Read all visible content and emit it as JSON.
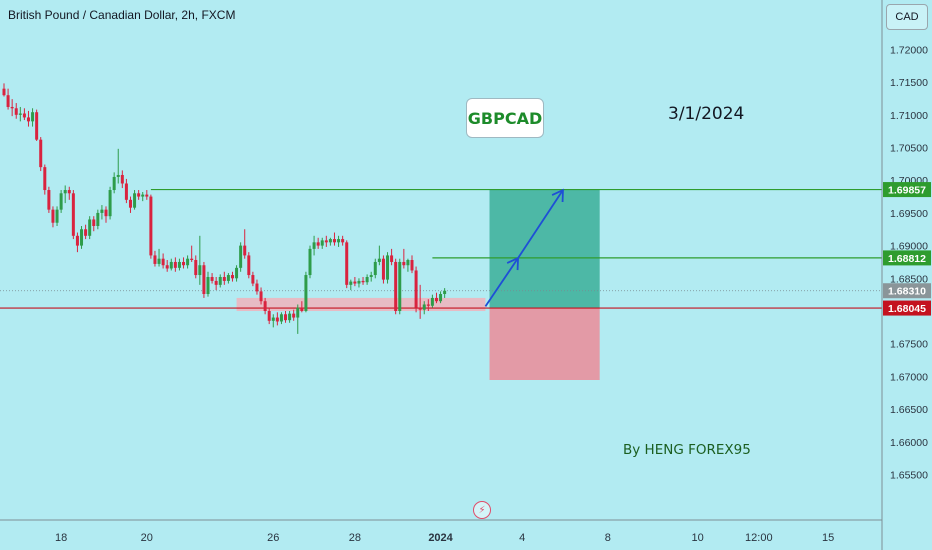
{
  "header": {
    "title": "British Pound / Canadian Dollar, 2h, FXCM"
  },
  "currency_button": "CAD",
  "annotations": {
    "pair_label": "GBPCAD",
    "date_label": "3/1/2024",
    "author_label": "By HENG FOREX95"
  },
  "colors": {
    "background": "#b2ebf2",
    "bull": "#2e9c4a",
    "bear": "#d9233f",
    "target_line": "#2e9c2e",
    "stop_line": "#c4121f",
    "profit_zone": "#4db8a6",
    "loss_zone": "#e39aa6",
    "support_zone": "#f0b3bc",
    "arrow": "#1e4fd6"
  },
  "icons": {
    "event_marker": "lightning-icon"
  },
  "chart_data": {
    "type": "candlestick",
    "symbol": "GBPCAD",
    "timeframe": "2h",
    "ylim": [
      1.6485,
      1.7245
    ],
    "y_ticks": [
      "1.72000",
      "1.71500",
      "1.71000",
      "1.70500",
      "1.70000",
      "1.69500",
      "1.69000",
      "1.68500",
      "1.68000",
      "1.67500",
      "1.67000",
      "1.66500",
      "1.66000",
      "1.65500"
    ],
    "x_ticks": [
      {
        "label": "18",
        "slot": 14
      },
      {
        "label": "20",
        "slot": 35
      },
      {
        "label": "26",
        "slot": 66
      },
      {
        "label": "28",
        "slot": 86
      },
      {
        "label": "2024",
        "slot": 107
      },
      {
        "label": "4",
        "slot": 127
      },
      {
        "label": "8",
        "slot": 148
      },
      {
        "label": "10",
        "slot": 170
      },
      {
        "label": "12:00",
        "slot": 185
      },
      {
        "label": "15",
        "slot": 202
      }
    ],
    "price_labels": [
      {
        "value": "1.69857",
        "role": "target"
      },
      {
        "value": "1.68812",
        "role": "first-target"
      },
      {
        "value": "1.68310",
        "role": "current"
      },
      {
        "value": "1.68045",
        "role": "entry"
      }
    ],
    "position": {
      "entry": 1.68045,
      "target": 1.69857,
      "first_target": 1.68812,
      "stop": 1.66945,
      "start_slot": 119,
      "end_slot": 146
    },
    "support_zone": {
      "top": 1.682,
      "bottom": 1.68,
      "start_slot": 57,
      "end_slot": 118
    },
    "arrow_path": [
      {
        "slot": 118,
        "price": 1.6807
      },
      {
        "slot": 126,
        "price": 1.6881
      },
      {
        "slot": 137,
        "price": 1.6985
      }
    ],
    "candles": [
      [
        1.714,
        1.7148,
        1.7128,
        1.713
      ],
      [
        1.713,
        1.714,
        1.7108,
        1.7112
      ],
      [
        1.7112,
        1.7124,
        1.7098,
        1.711
      ],
      [
        1.711,
        1.7118,
        1.7094,
        1.71
      ],
      [
        1.71,
        1.7112,
        1.709,
        1.7102
      ],
      [
        1.7102,
        1.711,
        1.7092,
        1.7096
      ],
      [
        1.7096,
        1.7106,
        1.7082,
        1.709
      ],
      [
        1.709,
        1.711,
        1.7082,
        1.7104
      ],
      [
        1.7104,
        1.7108,
        1.706,
        1.7062
      ],
      [
        1.7062,
        1.7066,
        1.7014,
        1.702
      ],
      [
        1.702,
        1.7024,
        1.6978,
        1.6985
      ],
      [
        1.6985,
        1.699,
        1.695,
        1.6955
      ],
      [
        1.6955,
        1.696,
        1.6928,
        1.6935
      ],
      [
        1.6935,
        1.696,
        1.693,
        1.6955
      ],
      [
        1.6955,
        1.6985,
        1.695,
        1.698
      ],
      [
        1.698,
        1.6992,
        1.6965,
        1.6985
      ],
      [
        1.6985,
        1.699,
        1.697,
        1.698
      ],
      [
        1.698,
        1.6985,
        1.691,
        1.6915
      ],
      [
        1.6915,
        1.692,
        1.689,
        1.69
      ],
      [
        1.69,
        1.693,
        1.6895,
        1.6925
      ],
      [
        1.6925,
        1.6932,
        1.691,
        1.6915
      ],
      [
        1.6915,
        1.6945,
        1.691,
        1.694
      ],
      [
        1.694,
        1.6945,
        1.6922,
        1.693
      ],
      [
        1.693,
        1.6955,
        1.6925,
        1.695
      ],
      [
        1.695,
        1.6962,
        1.694,
        1.6955
      ],
      [
        1.6955,
        1.696,
        1.6935,
        1.6945
      ],
      [
        1.6945,
        1.699,
        1.694,
        1.6985
      ],
      [
        1.6985,
        1.7012,
        1.698,
        1.7005
      ],
      [
        1.7005,
        1.7048,
        1.6995,
        1.7008
      ],
      [
        1.7008,
        1.7015,
        1.6988,
        1.6995
      ],
      [
        1.6995,
        1.7002,
        1.6965,
        1.697
      ],
      [
        1.697,
        1.6975,
        1.695,
        1.6958
      ],
      [
        1.6958,
        1.6985,
        1.6955,
        1.698
      ],
      [
        1.698,
        1.6985,
        1.697,
        1.6975
      ],
      [
        1.6975,
        1.6982,
        1.6968,
        1.6978
      ],
      [
        1.6978,
        1.6985,
        1.697,
        1.6975
      ],
      [
        1.6975,
        1.6978,
        1.688,
        1.6885
      ],
      [
        1.6885,
        1.6892,
        1.6868,
        1.6872
      ],
      [
        1.6872,
        1.6895,
        1.6868,
        1.688
      ],
      [
        1.688,
        1.6888,
        1.6865,
        1.687
      ],
      [
        1.687,
        1.6878,
        1.686,
        1.6865
      ],
      [
        1.6865,
        1.688,
        1.6862,
        1.6875
      ],
      [
        1.6875,
        1.6882,
        1.686,
        1.6866
      ],
      [
        1.6866,
        1.688,
        1.6862,
        1.6875
      ],
      [
        1.6875,
        1.6882,
        1.6865,
        1.687
      ],
      [
        1.687,
        1.6885,
        1.6865,
        1.688
      ],
      [
        1.688,
        1.69,
        1.6875,
        1.6878
      ],
      [
        1.6878,
        1.6885,
        1.685,
        1.6855
      ],
      [
        1.6855,
        1.6915,
        1.684,
        1.687
      ],
      [
        1.687,
        1.6875,
        1.682,
        1.6826
      ],
      [
        1.6826,
        1.686,
        1.6822,
        1.6852
      ],
      [
        1.6852,
        1.6858,
        1.6842,
        1.6846
      ],
      [
        1.6846,
        1.6852,
        1.6832,
        1.684
      ],
      [
        1.684,
        1.6856,
        1.6836,
        1.6852
      ],
      [
        1.6852,
        1.686,
        1.684,
        1.6846
      ],
      [
        1.6846,
        1.6858,
        1.6842,
        1.6855
      ],
      [
        1.6855,
        1.686,
        1.6845,
        1.685
      ],
      [
        1.685,
        1.687,
        1.6845,
        1.6866
      ],
      [
        1.6866,
        1.6905,
        1.686,
        1.69
      ],
      [
        1.69,
        1.6925,
        1.688,
        1.6885
      ],
      [
        1.6885,
        1.689,
        1.685,
        1.6855
      ],
      [
        1.6855,
        1.686,
        1.6838,
        1.6842
      ],
      [
        1.6842,
        1.6848,
        1.6825,
        1.683
      ],
      [
        1.683,
        1.6836,
        1.681,
        1.6815
      ],
      [
        1.6815,
        1.682,
        1.6795,
        1.68
      ],
      [
        1.68,
        1.6805,
        1.678,
        1.6785
      ],
      [
        1.6785,
        1.6795,
        1.6775,
        1.679
      ],
      [
        1.679,
        1.6798,
        1.6778,
        1.6784
      ],
      [
        1.6784,
        1.6798,
        1.678,
        1.6795
      ],
      [
        1.6795,
        1.68,
        1.6782,
        1.6786
      ],
      [
        1.6786,
        1.68,
        1.6782,
        1.6796
      ],
      [
        1.6796,
        1.6802,
        1.6785,
        1.679
      ],
      [
        1.679,
        1.681,
        1.6765,
        1.6805
      ],
      [
        1.6805,
        1.6815,
        1.6798,
        1.68
      ],
      [
        1.68,
        1.686,
        1.6798,
        1.6855
      ],
      [
        1.6855,
        1.69,
        1.685,
        1.6895
      ],
      [
        1.6895,
        1.6915,
        1.6885,
        1.6905
      ],
      [
        1.6905,
        1.6912,
        1.6895,
        1.69
      ],
      [
        1.69,
        1.6912,
        1.6895,
        1.6908
      ],
      [
        1.6908,
        1.6915,
        1.6898,
        1.6905
      ],
      [
        1.6905,
        1.6912,
        1.69,
        1.691
      ],
      [
        1.691,
        1.692,
        1.69,
        1.6905
      ],
      [
        1.6905,
        1.6915,
        1.6898,
        1.691
      ],
      [
        1.691,
        1.6915,
        1.69,
        1.6905
      ],
      [
        1.6905,
        1.6908,
        1.6835,
        1.684
      ],
      [
        1.684,
        1.6848,
        1.6832,
        1.6845
      ],
      [
        1.6845,
        1.6852,
        1.6838,
        1.6842
      ],
      [
        1.6842,
        1.685,
        1.6836,
        1.6846
      ],
      [
        1.6846,
        1.6852,
        1.684,
        1.6844
      ],
      [
        1.6844,
        1.6856,
        1.684,
        1.6852
      ],
      [
        1.6852,
        1.686,
        1.6845,
        1.6855
      ],
      [
        1.6855,
        1.688,
        1.685,
        1.6875
      ],
      [
        1.6875,
        1.69,
        1.687,
        1.688
      ],
      [
        1.688,
        1.6885,
        1.6842,
        1.6848
      ],
      [
        1.6848,
        1.689,
        1.6842,
        1.6885
      ],
      [
        1.6885,
        1.6895,
        1.687,
        1.6875
      ],
      [
        1.6875,
        1.688,
        1.6795,
        1.68
      ],
      [
        1.68,
        1.688,
        1.6795,
        1.6875
      ],
      [
        1.6875,
        1.6895,
        1.6865,
        1.687
      ],
      [
        1.687,
        1.688,
        1.686,
        1.6878
      ],
      [
        1.6878,
        1.6885,
        1.6858,
        1.6862
      ],
      [
        1.6862,
        1.6868,
        1.6798,
        1.6805
      ],
      [
        1.6805,
        1.684,
        1.6788,
        1.6802
      ],
      [
        1.6802,
        1.6815,
        1.6795,
        1.681
      ],
      [
        1.681,
        1.6818,
        1.68,
        1.6808
      ],
      [
        1.6808,
        1.6825,
        1.6805,
        1.682
      ],
      [
        1.682,
        1.6828,
        1.6812,
        1.6815
      ],
      [
        1.6815,
        1.683,
        1.6812,
        1.6826
      ],
      [
        1.6826,
        1.6835,
        1.682,
        1.6831
      ]
    ]
  }
}
